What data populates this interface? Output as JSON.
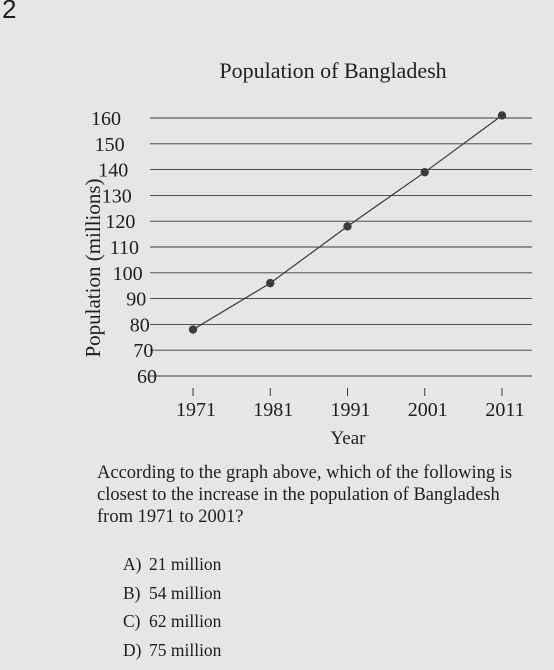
{
  "question_number": "2",
  "chart_data": {
    "type": "line",
    "title": "Population of Bangladesh",
    "xlabel": "Year",
    "ylabel": "Population (millions)",
    "x": [
      1971,
      1981,
      1991,
      2001,
      2011
    ],
    "x_ticks": [
      "1971",
      "1981",
      "1991",
      "2001",
      "2011"
    ],
    "y_ticks": [
      "60",
      "70",
      "80",
      "90",
      "100",
      "110",
      "120",
      "130",
      "140",
      "150",
      "160"
    ],
    "ylim": [
      60,
      160
    ],
    "series": [
      {
        "values": [
          78,
          96,
          118,
          139,
          161
        ]
      }
    ],
    "grid": true,
    "colors": {
      "line": "#3a3a3a",
      "points": "#3c3c3c",
      "grid": "#3a3a3a"
    }
  },
  "question": {
    "text": "According to the graph above, which of the following is closest to the increase in the population of Bangladesh from 1971 to 2001?",
    "choices": [
      {
        "letter": "A)",
        "text": "21 million"
      },
      {
        "letter": "B)",
        "text": "54 million"
      },
      {
        "letter": "C)",
        "text": "62 million"
      },
      {
        "letter": "D)",
        "text": "75 million"
      }
    ]
  }
}
